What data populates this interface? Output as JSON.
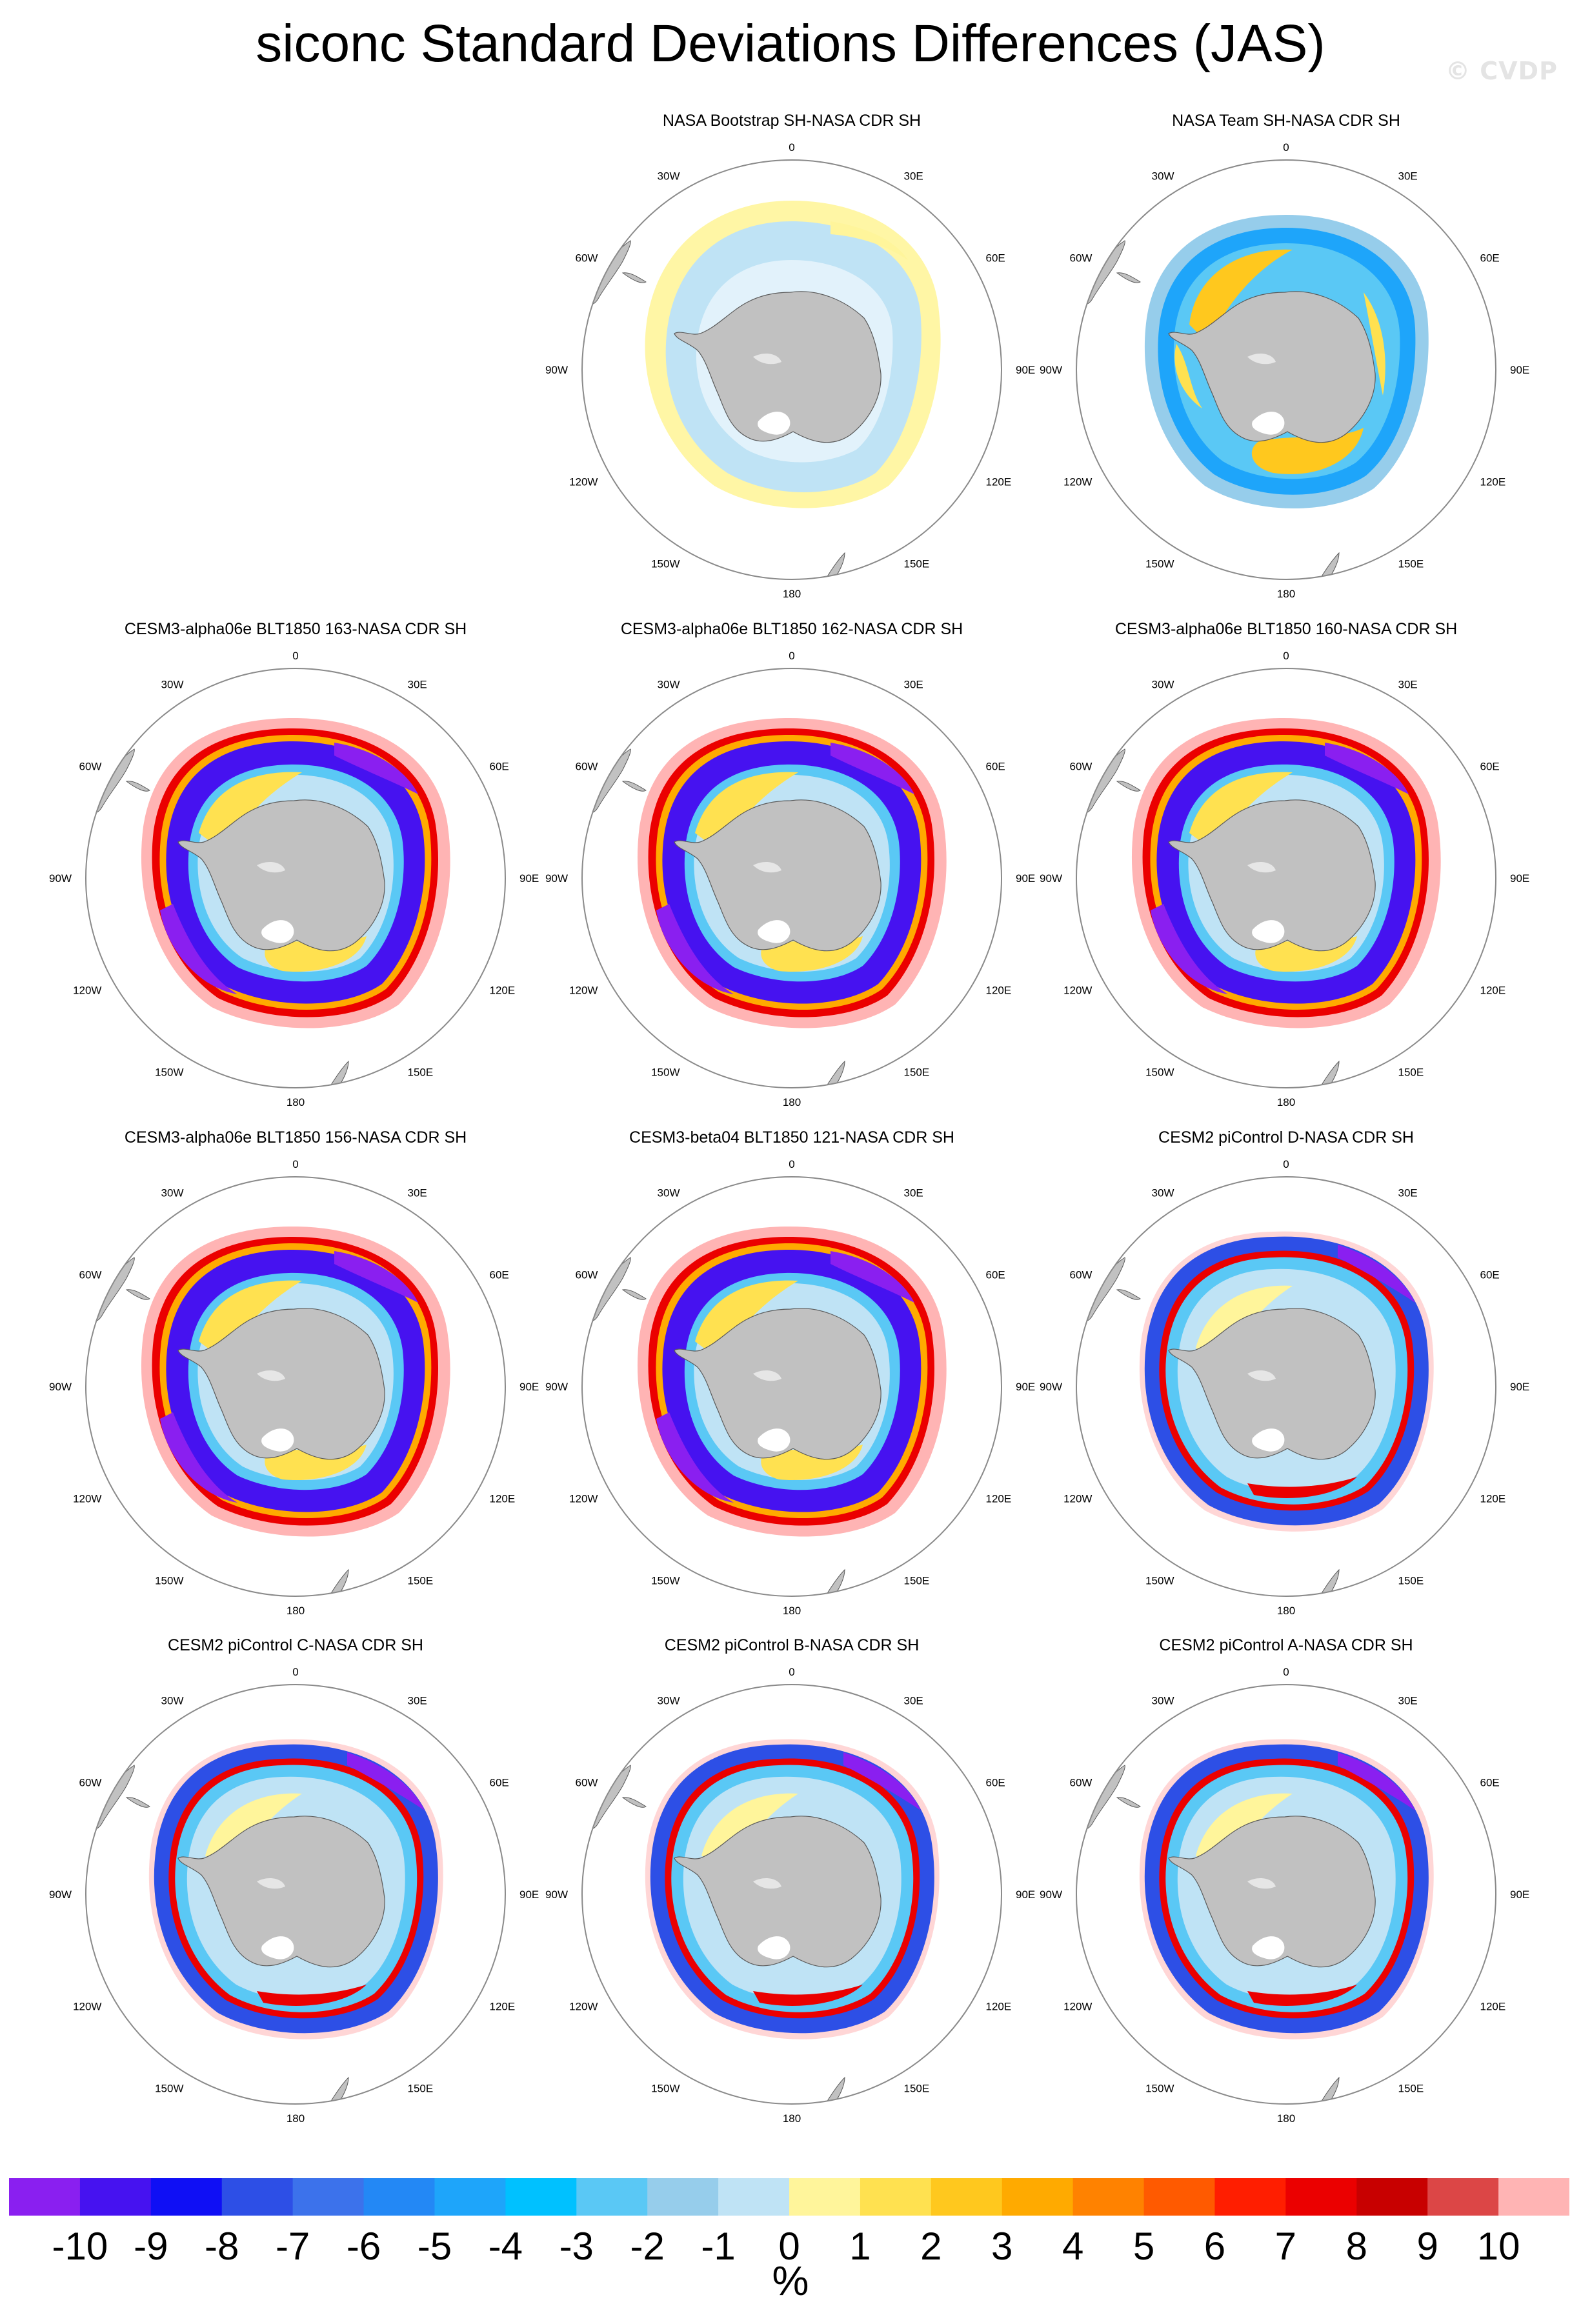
{
  "figure": {
    "title": "siconc Standard Deviations Differences (JAS)",
    "watermark": "© CVDP",
    "units": "%"
  },
  "map_labels": [
    "0",
    "30E",
    "60E",
    "90E",
    "120E",
    "150E",
    "180",
    "150W",
    "120W",
    "90W",
    "60W",
    "30W"
  ],
  "colorbar": {
    "colors": [
      "#8a1ff0",
      "#4612f0",
      "#0f0ff5",
      "#2d4fe6",
      "#3c72eb",
      "#2388f5",
      "#1ea5fa",
      "#00c1ff",
      "#5ac8f5",
      "#96cdeb",
      "#bfe3f5",
      "#fff59b",
      "#ffe150",
      "#ffc81e",
      "#ffaa00",
      "#ff8200",
      "#ff5a00",
      "#ff1e00",
      "#eb0000",
      "#c80000",
      "#dc4646",
      "#ffb4b4"
    ],
    "ticks": [
      "-10",
      "-9",
      "-8",
      "-7",
      "-6",
      "-5",
      "-4",
      "-3",
      "-2",
      "-1",
      "0",
      "1",
      "2",
      "3",
      "4",
      "5",
      "6",
      "7",
      "8",
      "9",
      "10"
    ]
  },
  "panels": [
    {
      "title": "",
      "style": "empty"
    },
    {
      "title": "NASA Bootstrap SH-NASA CDR SH",
      "style": "bootstrap"
    },
    {
      "title": "NASA Team SH-NASA CDR SH",
      "style": "team"
    },
    {
      "title": "CESM3-alpha06e BLT1850 163-NASA CDR SH",
      "style": "model"
    },
    {
      "title": "CESM3-alpha06e BLT1850 162-NASA CDR SH",
      "style": "model"
    },
    {
      "title": "CESM3-alpha06e BLT1850 160-NASA CDR SH",
      "style": "model"
    },
    {
      "title": "CESM3-alpha06e BLT1850 156-NASA CDR SH",
      "style": "model"
    },
    {
      "title": "CESM3-beta04 BLT1850 121-NASA CDR SH",
      "style": "model"
    },
    {
      "title": "CESM2 piControl D-NASA CDR SH",
      "style": "picontrol"
    },
    {
      "title": "CESM2 piControl C-NASA CDR SH",
      "style": "picontrol"
    },
    {
      "title": "CESM2 piControl B-NASA CDR SH",
      "style": "picontrol"
    },
    {
      "title": "CESM2 piControl A-NASA CDR SH",
      "style": "picontrol"
    }
  ]
}
